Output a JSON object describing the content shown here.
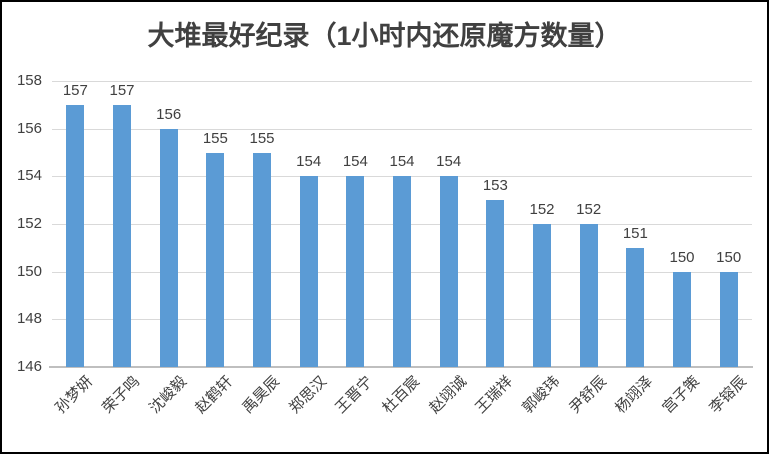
{
  "chart_data": {
    "type": "bar",
    "title": "大堆最好纪录（1小时内还原魔方数量）",
    "categories": [
      "孙梦妍",
      "荣子鸣",
      "沈峻毅",
      "赵鹤轩",
      "禹昊辰",
      "郑思汉",
      "王晋宁",
      "杜百宸",
      "赵翊诚",
      "王瑞祥",
      "郭峻玮",
      "尹舒辰",
      "杨翊泽",
      "宫子策",
      "李镕辰"
    ],
    "values": [
      157,
      157,
      156,
      155,
      155,
      154,
      154,
      154,
      154,
      153,
      152,
      152,
      151,
      150,
      150
    ],
    "xlabel": "",
    "ylabel": "",
    "ylim": [
      146,
      158
    ],
    "yticks": [
      146,
      148,
      150,
      152,
      154,
      156,
      158
    ],
    "grid": true,
    "legend": "none",
    "data_labels": true,
    "colors": {
      "bar": "#5B9BD5",
      "gridline": "#D9D9D9",
      "axis_line": "#BFBFBF",
      "text": "#404040",
      "background": "#FFFFFF",
      "frame_border": "#000000"
    }
  }
}
